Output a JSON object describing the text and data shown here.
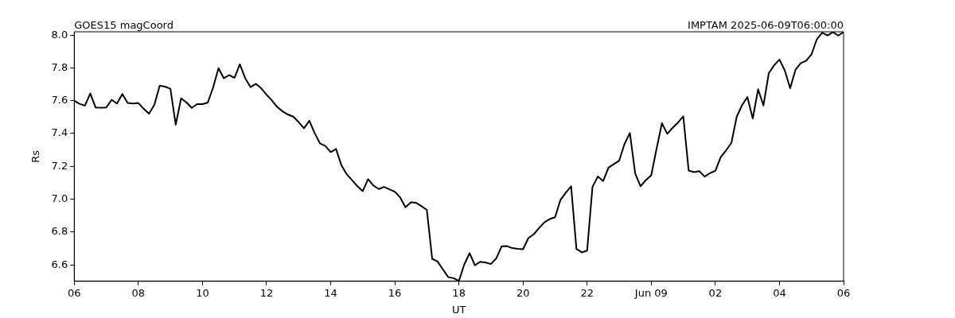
{
  "chart_data": {
    "type": "line",
    "title": "GOES15 magCoord",
    "subtitle": "IMPTAM 2025-06-09T06:00:00",
    "xlabel": "UT",
    "ylabel": "Rs",
    "x": [
      "2025-06-08T06:00",
      "2025-06-08T06:10",
      "2025-06-08T06:20",
      "2025-06-08T06:30",
      "2025-06-08T06:40",
      "2025-06-08T06:50",
      "2025-06-08T07:00",
      "2025-06-08T07:10",
      "2025-06-08T07:20",
      "2025-06-08T07:30",
      "2025-06-08T07:40",
      "2025-06-08T07:50",
      "2025-06-08T08:00",
      "2025-06-08T08:10",
      "2025-06-08T08:20",
      "2025-06-08T08:30",
      "2025-06-08T08:40",
      "2025-06-08T08:50",
      "2025-06-08T09:00",
      "2025-06-08T09:10",
      "2025-06-08T09:20",
      "2025-06-08T09:30",
      "2025-06-08T09:40",
      "2025-06-08T09:50",
      "2025-06-08T10:00",
      "2025-06-08T10:10",
      "2025-06-08T10:20",
      "2025-06-08T10:30",
      "2025-06-08T10:40",
      "2025-06-08T10:50",
      "2025-06-08T11:00",
      "2025-06-08T11:10",
      "2025-06-08T11:20",
      "2025-06-08T11:30",
      "2025-06-08T11:40",
      "2025-06-08T11:50",
      "2025-06-08T12:00",
      "2025-06-08T12:10",
      "2025-06-08T12:20",
      "2025-06-08T12:30",
      "2025-06-08T12:40",
      "2025-06-08T12:50",
      "2025-06-08T13:00",
      "2025-06-08T13:10",
      "2025-06-08T13:20",
      "2025-06-08T13:30",
      "2025-06-08T13:40",
      "2025-06-08T13:50",
      "2025-06-08T14:00",
      "2025-06-08T14:10",
      "2025-06-08T14:20",
      "2025-06-08T14:30",
      "2025-06-08T14:40",
      "2025-06-08T14:50",
      "2025-06-08T15:00",
      "2025-06-08T15:10",
      "2025-06-08T15:20",
      "2025-06-08T15:30",
      "2025-06-08T15:40",
      "2025-06-08T15:50",
      "2025-06-08T16:00",
      "2025-06-08T16:10",
      "2025-06-08T16:20",
      "2025-06-08T16:30",
      "2025-06-08T16:40",
      "2025-06-08T16:50",
      "2025-06-08T17:00",
      "2025-06-08T17:10",
      "2025-06-08T17:20",
      "2025-06-08T17:30",
      "2025-06-08T17:40",
      "2025-06-08T17:50",
      "2025-06-08T18:00",
      "2025-06-08T18:10",
      "2025-06-08T18:20",
      "2025-06-08T18:30",
      "2025-06-08T18:40",
      "2025-06-08T18:50",
      "2025-06-08T19:00",
      "2025-06-08T19:10",
      "2025-06-08T19:20",
      "2025-06-08T19:30",
      "2025-06-08T19:40",
      "2025-06-08T19:50",
      "2025-06-08T20:00",
      "2025-06-08T20:10",
      "2025-06-08T20:20",
      "2025-06-08T20:30",
      "2025-06-08T20:40",
      "2025-06-08T20:50",
      "2025-06-08T21:00",
      "2025-06-08T21:10",
      "2025-06-08T21:20",
      "2025-06-08T21:30",
      "2025-06-08T21:40",
      "2025-06-08T21:50",
      "2025-06-08T22:00",
      "2025-06-08T22:10",
      "2025-06-08T22:20",
      "2025-06-08T22:30",
      "2025-06-08T22:40",
      "2025-06-08T22:50",
      "2025-06-08T23:00",
      "2025-06-08T23:10",
      "2025-06-08T23:20",
      "2025-06-08T23:30",
      "2025-06-08T23:40",
      "2025-06-08T23:50",
      "2025-06-09T00:00",
      "2025-06-09T00:10",
      "2025-06-09T00:20",
      "2025-06-09T00:30",
      "2025-06-09T00:40",
      "2025-06-09T00:50",
      "2025-06-09T01:00",
      "2025-06-09T01:10",
      "2025-06-09T01:20",
      "2025-06-09T01:30",
      "2025-06-09T01:40",
      "2025-06-09T01:50",
      "2025-06-09T02:00",
      "2025-06-09T02:10",
      "2025-06-09T02:20",
      "2025-06-09T02:30",
      "2025-06-09T02:40",
      "2025-06-09T02:50",
      "2025-06-09T03:00",
      "2025-06-09T03:10",
      "2025-06-09T03:20",
      "2025-06-09T03:30",
      "2025-06-09T03:40",
      "2025-06-09T03:50",
      "2025-06-09T04:00",
      "2025-06-09T04:10",
      "2025-06-09T04:20",
      "2025-06-09T04:30",
      "2025-06-09T04:40",
      "2025-06-09T04:50",
      "2025-06-09T05:00",
      "2025-06-09T05:10",
      "2025-06-09T05:20",
      "2025-06-09T05:30",
      "2025-06-09T05:40",
      "2025-06-09T05:50",
      "2025-06-09T06:00"
    ],
    "series": [
      {
        "color": "#000000",
        "values": [
          7.6,
          7.581,
          7.57,
          7.644,
          7.559,
          7.557,
          7.559,
          7.606,
          7.583,
          7.641,
          7.587,
          7.583,
          7.586,
          7.551,
          7.521,
          7.576,
          7.692,
          7.686,
          7.673,
          7.454,
          7.614,
          7.59,
          7.556,
          7.579,
          7.579,
          7.589,
          7.681,
          7.798,
          7.737,
          7.756,
          7.74,
          7.822,
          7.737,
          7.683,
          7.703,
          7.676,
          7.637,
          7.602,
          7.562,
          7.535,
          7.516,
          7.503,
          7.47,
          7.432,
          7.478,
          7.403,
          7.34,
          7.324,
          7.287,
          7.306,
          7.208,
          7.152,
          7.116,
          7.079,
          7.049,
          7.122,
          7.083,
          7.062,
          7.075,
          7.06,
          7.046,
          7.011,
          6.951,
          6.981,
          6.978,
          6.957,
          6.935,
          6.637,
          6.621,
          6.573,
          6.525,
          6.519,
          6.502,
          6.602,
          6.671,
          6.598,
          6.619,
          6.614,
          6.605,
          6.64,
          6.713,
          6.714,
          6.702,
          6.698,
          6.695,
          6.763,
          6.786,
          6.824,
          6.859,
          6.879,
          6.89,
          6.995,
          7.04,
          7.079,
          6.697,
          6.676,
          6.687,
          7.075,
          7.138,
          7.111,
          7.192,
          7.214,
          7.235,
          7.337,
          7.403,
          7.156,
          7.079,
          7.117,
          7.146,
          7.308,
          7.463,
          7.398,
          7.435,
          7.467,
          7.505,
          7.175,
          7.165,
          7.171,
          7.138,
          7.159,
          7.173,
          7.256,
          7.297,
          7.343,
          7.503,
          7.573,
          7.622,
          7.492,
          7.67,
          7.571,
          7.768,
          7.816,
          7.851,
          7.784,
          7.676,
          7.789,
          7.829,
          7.844,
          7.883,
          7.975,
          8.015,
          7.998,
          8.018,
          7.997,
          8.018
        ]
      }
    ],
    "xlim": [
      "2025-06-08T06:00",
      "2025-06-09T06:00"
    ],
    "xticks": [
      {
        "value": "2025-06-08T06:00",
        "label": "06"
      },
      {
        "value": "2025-06-08T08:00",
        "label": "08"
      },
      {
        "value": "2025-06-08T10:00",
        "label": "10"
      },
      {
        "value": "2025-06-08T12:00",
        "label": "12"
      },
      {
        "value": "2025-06-08T14:00",
        "label": "14"
      },
      {
        "value": "2025-06-08T16:00",
        "label": "16"
      },
      {
        "value": "2025-06-08T18:00",
        "label": "18"
      },
      {
        "value": "2025-06-08T20:00",
        "label": "20"
      },
      {
        "value": "2025-06-08T22:00",
        "label": "22"
      },
      {
        "value": "2025-06-09T00:00",
        "label": "Jun 09"
      },
      {
        "value": "2025-06-09T02:00",
        "label": "02"
      },
      {
        "value": "2025-06-09T04:00",
        "label": "04"
      },
      {
        "value": "2025-06-09T06:00",
        "label": "06"
      }
    ],
    "ylim": [
      6.5,
      8.02
    ],
    "yticks": [
      {
        "value": 6.6,
        "label": "6.6"
      },
      {
        "value": 6.8,
        "label": "6.8"
      },
      {
        "value": 7.0,
        "label": "7.0"
      },
      {
        "value": 7.2,
        "label": "7.2"
      },
      {
        "value": 7.4,
        "label": "7.4"
      },
      {
        "value": 7.6,
        "label": "7.6"
      },
      {
        "value": 7.8,
        "label": "7.8"
      },
      {
        "value": 8.0,
        "label": "8.0"
      }
    ],
    "grid": false,
    "legend": false,
    "marker": "none",
    "line_style": "solid"
  }
}
